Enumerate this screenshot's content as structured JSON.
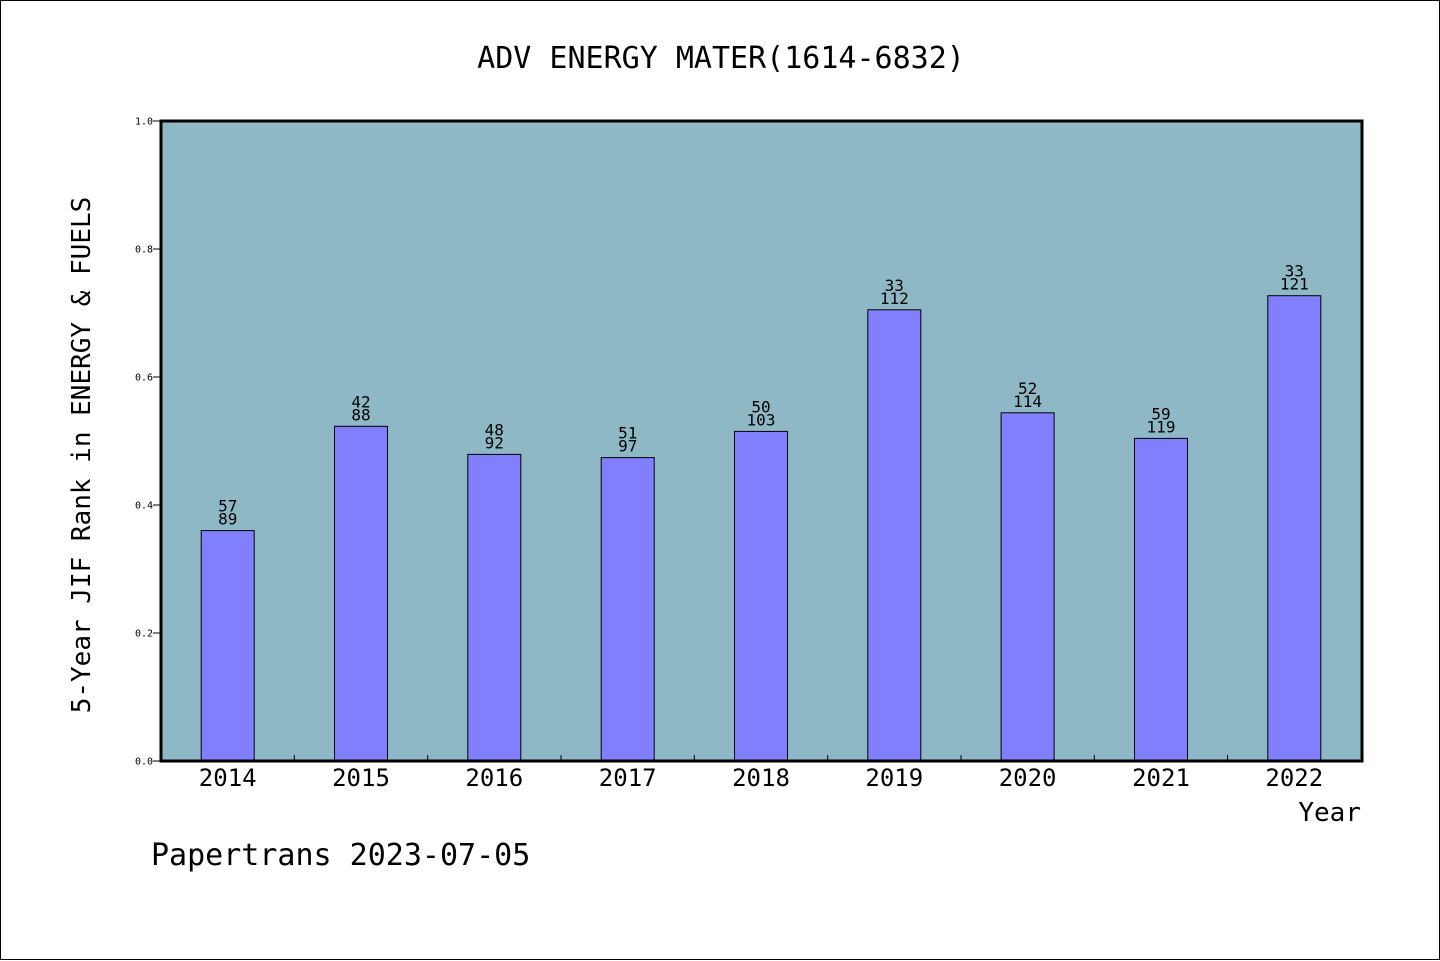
{
  "chart_data": {
    "type": "bar",
    "title": "ADV ENERGY MATER(1614-6832)",
    "xlabel": "Year",
    "ylabel": "5-Year JIF Rank in ENERGY & FUELS",
    "categories": [
      "2014",
      "2015",
      "2016",
      "2017",
      "2018",
      "2019",
      "2020",
      "2021",
      "2022"
    ],
    "values": [
      0.36,
      0.523,
      0.479,
      0.474,
      0.515,
      0.705,
      0.544,
      0.504,
      0.727
    ],
    "labels_top": [
      "57",
      "42",
      "48",
      "51",
      "50",
      "33",
      "52",
      "59",
      "33"
    ],
    "labels_bottom": [
      "89",
      "88",
      "92",
      "97",
      "103",
      "112",
      "114",
      "119",
      "121"
    ],
    "ylim": [
      0,
      1.0
    ],
    "yticks": [
      "0.0",
      "0.2",
      "0.4",
      "0.6",
      "0.8",
      "1.0"
    ],
    "grid": false,
    "colors": {
      "plot_background": "#8fb8c6",
      "bar_fill": "#8080ff",
      "bar_stroke": "#000000"
    }
  },
  "footer": "Papertrans 2023-07-05"
}
